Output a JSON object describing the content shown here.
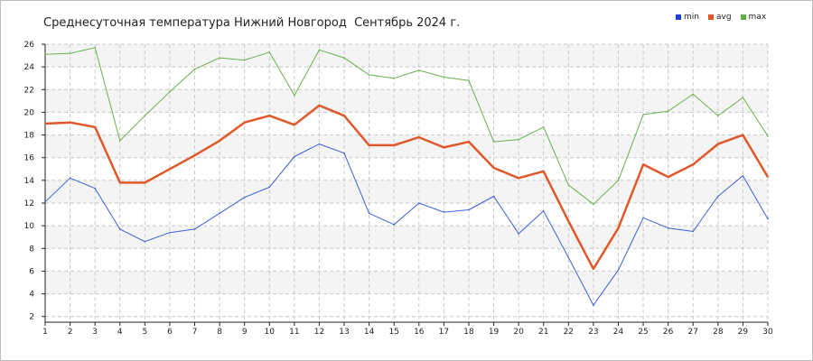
{
  "chart_data": {
    "type": "line",
    "title": "Среднесуточная температура Нижний Новгород  Сентябрь 2024 г.",
    "xlabel": "",
    "ylabel": "",
    "x": [
      1,
      2,
      3,
      4,
      5,
      6,
      7,
      8,
      9,
      10,
      11,
      12,
      13,
      14,
      15,
      16,
      17,
      18,
      19,
      20,
      21,
      22,
      23,
      24,
      25,
      26,
      27,
      28,
      29,
      30
    ],
    "xlim": [
      1,
      30
    ],
    "ylim": [
      1.5,
      26
    ],
    "yticks": [
      2,
      4,
      6,
      8,
      10,
      12,
      14,
      16,
      18,
      20,
      22,
      24,
      26
    ],
    "grid": true,
    "legend_position": "top-right",
    "series": [
      {
        "name": "min",
        "color": "#3b5fd9",
        "values": [
          12.1,
          14.2,
          13.3,
          9.7,
          8.6,
          9.4,
          9.7,
          11.1,
          12.5,
          13.4,
          16.1,
          17.2,
          16.4,
          11.1,
          10.1,
          12.0,
          11.2,
          11.4,
          12.6,
          9.3,
          11.3,
          7.2,
          3.0,
          6.1,
          10.7,
          9.8,
          9.5,
          12.6,
          14.4,
          10.6
        ]
      },
      {
        "name": "avg",
        "color": "#e0582a",
        "values": [
          19.0,
          19.1,
          18.7,
          13.8,
          13.8,
          15.0,
          16.2,
          17.5,
          19.1,
          19.7,
          18.9,
          20.6,
          19.7,
          17.1,
          17.1,
          17.8,
          16.9,
          17.4,
          15.1,
          14.2,
          14.8,
          10.4,
          6.2,
          9.8,
          15.4,
          14.3,
          15.4,
          17.2,
          18.0,
          14.3
        ]
      },
      {
        "name": "max",
        "color": "#6ab04c",
        "values": [
          25.1,
          25.2,
          25.7,
          17.5,
          19.7,
          21.8,
          23.8,
          24.8,
          24.6,
          25.3,
          21.5,
          25.5,
          24.8,
          23.3,
          23.0,
          23.7,
          23.1,
          22.8,
          17.4,
          17.6,
          18.7,
          13.6,
          11.9,
          14.0,
          19.8,
          20.1,
          21.6,
          19.7,
          21.3,
          17.9
        ]
      }
    ]
  }
}
